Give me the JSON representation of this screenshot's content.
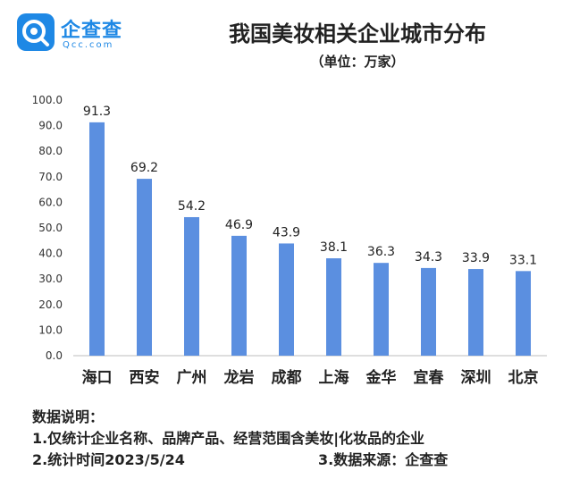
{
  "brand": {
    "name": "企查查",
    "sub": "Qcc.com",
    "accent": "#1e88e5"
  },
  "title": "我国美妆相关企业城市分布",
  "subtitle": "（单位：万家）",
  "notes": {
    "heading": "数据说明：",
    "line1": "1.仅统计企业名称、品牌产品、经营范围含美妆|化妆品的企业",
    "line2": "2.统计时间2023/5/24",
    "line3": "3.数据来源：企查查"
  },
  "chart_data": {
    "type": "bar",
    "categories": [
      "海口",
      "西安",
      "广州",
      "龙岩",
      "成都",
      "上海",
      "金华",
      "宜春",
      "深圳",
      "北京"
    ],
    "values": [
      91.3,
      69.2,
      54.2,
      46.9,
      43.9,
      38.1,
      36.3,
      34.3,
      33.9,
      33.1
    ],
    "value_labels": [
      "91.3",
      "69.2",
      "54.2",
      "46.9",
      "43.9",
      "38.1",
      "36.3",
      "34.3",
      "33.9",
      "33.1"
    ],
    "ylim": [
      0,
      100
    ],
    "yticks": [
      "0.0",
      "10.0",
      "20.0",
      "30.0",
      "40.0",
      "50.0",
      "60.0",
      "70.0",
      "80.0",
      "90.0",
      "100.0"
    ],
    "bar_color": "#5b8fe0",
    "grid": false
  }
}
